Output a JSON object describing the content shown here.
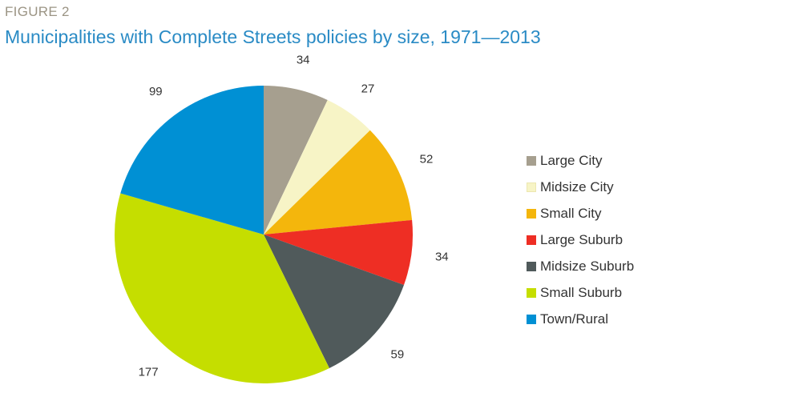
{
  "header": {
    "figure_label": "FIGURE 2",
    "title": "Municipalities with Complete Streets policies by size, 1971—2013"
  },
  "chart_data": {
    "type": "pie",
    "start_angle_deg": 0,
    "direction": "clockwise",
    "legend_position": "right",
    "slices": [
      {
        "label": "Large City",
        "value": 34,
        "color": "#a69f8f"
      },
      {
        "label": "Midsize City",
        "value": 27,
        "color": "#f7f4c6"
      },
      {
        "label": "Small City",
        "value": 52,
        "color": "#f4b60c"
      },
      {
        "label": "Large Suburb",
        "value": 34,
        "color": "#ee2e24"
      },
      {
        "label": "Midsize Suburb",
        "value": 59,
        "color": "#505a5b"
      },
      {
        "label": "Small Suburb",
        "value": 177,
        "color": "#c5de00"
      },
      {
        "label": "Town/Rural",
        "value": 99,
        "color": "#0090d4"
      }
    ]
  }
}
